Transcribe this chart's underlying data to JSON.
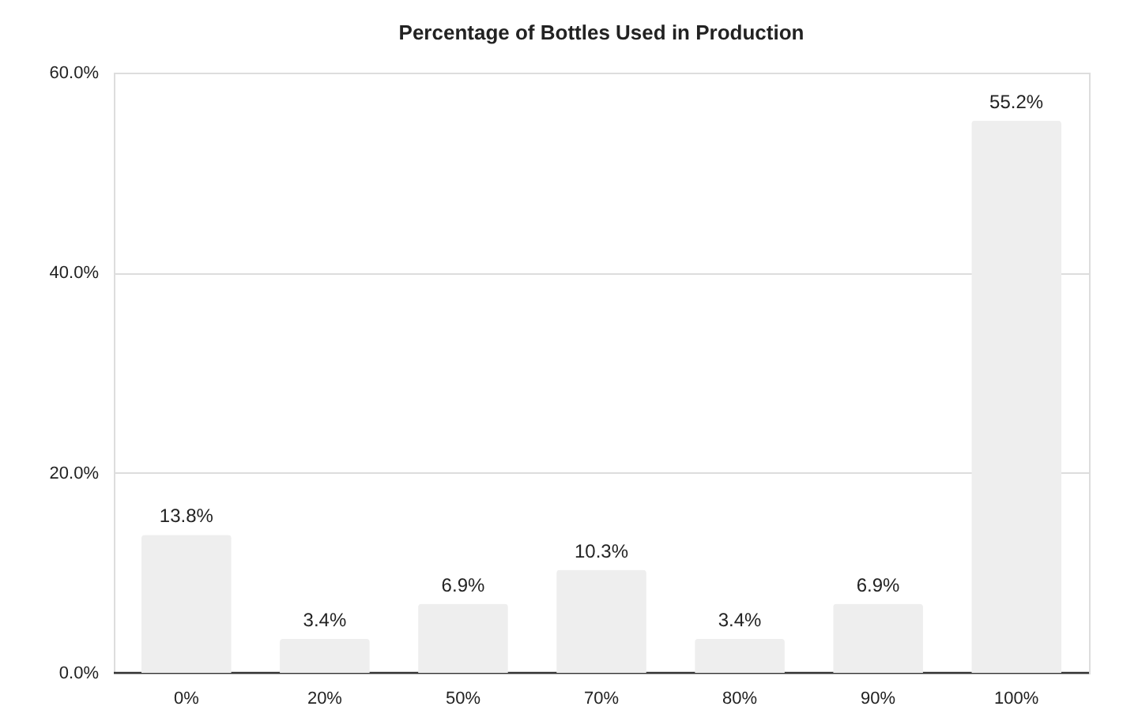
{
  "chart_data": {
    "type": "bar",
    "title": "Percentage of Bottles Used in Production",
    "categories": [
      "0%",
      "20%",
      "50%",
      "70%",
      "80%",
      "90%",
      "100%"
    ],
    "values": [
      13.8,
      3.4,
      6.9,
      10.3,
      3.4,
      6.9,
      55.2
    ],
    "value_labels": [
      "13.8%",
      "3.4%",
      "6.9%",
      "10.3%",
      "3.4%",
      "6.9%",
      "55.2%"
    ],
    "color": "#eeeeee",
    "ylim": [
      0,
      60
    ],
    "yticks": [
      {
        "value": 0,
        "label": "0.0%"
      },
      {
        "value": 20,
        "label": "20.0%"
      },
      {
        "value": 40,
        "label": "40.0%"
      },
      {
        "value": 60,
        "label": "60.0%"
      }
    ],
    "grid": "y",
    "legend": false
  }
}
